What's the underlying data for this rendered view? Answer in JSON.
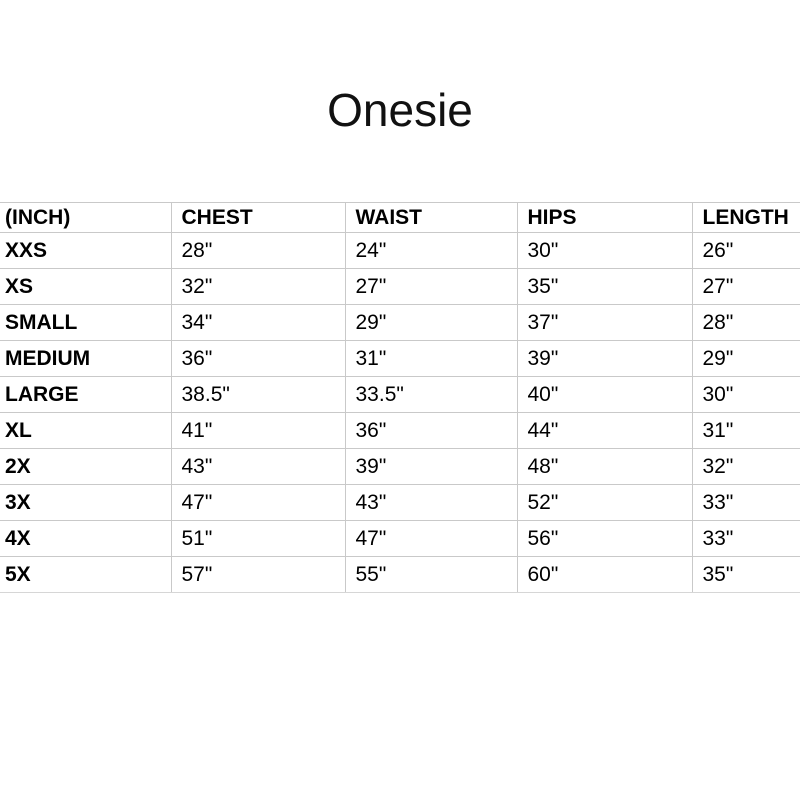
{
  "title": "Onesie",
  "colors": {
    "background": "#ffffff",
    "text": "#000000",
    "gridline": "#c9c9c9"
  },
  "table": {
    "headers": [
      "(INCH)",
      "CHEST",
      "WAIST",
      "HIPS",
      "LENGTH"
    ],
    "rows": [
      [
        "XXS",
        "28\"",
        "24\"",
        "30\"",
        "26\""
      ],
      [
        "XS",
        "32\"",
        "27\"",
        "35\"",
        "27\""
      ],
      [
        "SMALL",
        "34\"",
        "29\"",
        "37\"",
        "28\""
      ],
      [
        "MEDIUM",
        "36\"",
        "31\"",
        "39\"",
        "29\""
      ],
      [
        "LARGE",
        "38.5\"",
        "33.5\"",
        "40\"",
        "30\""
      ],
      [
        "XL",
        "41\"",
        "36\"",
        "44\"",
        "31\""
      ],
      [
        "2X",
        "43\"",
        "39\"",
        "48\"",
        "32\""
      ],
      [
        "3X",
        "47\"",
        "43\"",
        "52\"",
        "33\""
      ],
      [
        "4X",
        "51\"",
        "47\"",
        "56\"",
        "33\""
      ],
      [
        "5X",
        "57\"",
        "55\"",
        "60\"",
        "35\""
      ]
    ]
  }
}
